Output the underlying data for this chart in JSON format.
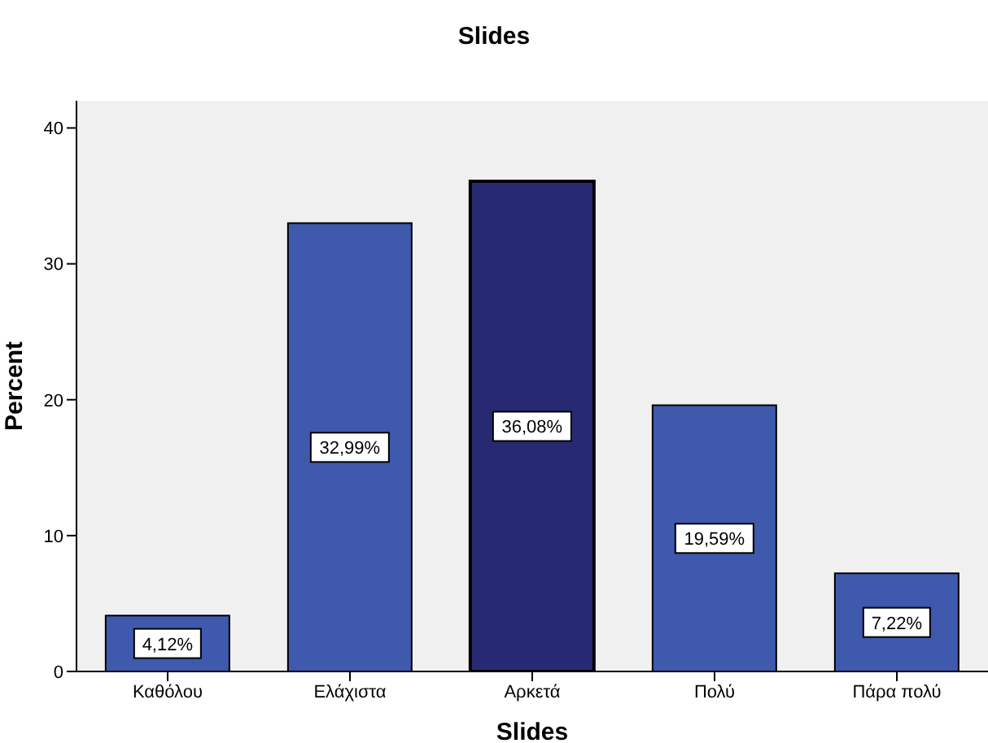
{
  "chart_data": {
    "type": "bar",
    "title": "Slides",
    "xlabel": "Slides",
    "ylabel": "Percent",
    "categories": [
      "Καθόλου",
      "Ελάχιστα",
      "Αρκετά",
      "Πολύ",
      "Πάρα πολύ"
    ],
    "values": [
      4.12,
      32.99,
      36.08,
      19.59,
      7.22
    ],
    "value_labels": [
      "4,12%",
      "32,99%",
      "36,08%",
      "19,59%",
      "7,22%"
    ],
    "colors": [
      "#3f59ad",
      "#3f59ad",
      "#272a72",
      "#3f59ad",
      "#3f59ad"
    ],
    "ylim": [
      0,
      42
    ],
    "yticks": [
      0,
      10,
      20,
      30,
      40
    ],
    "grid": false
  }
}
